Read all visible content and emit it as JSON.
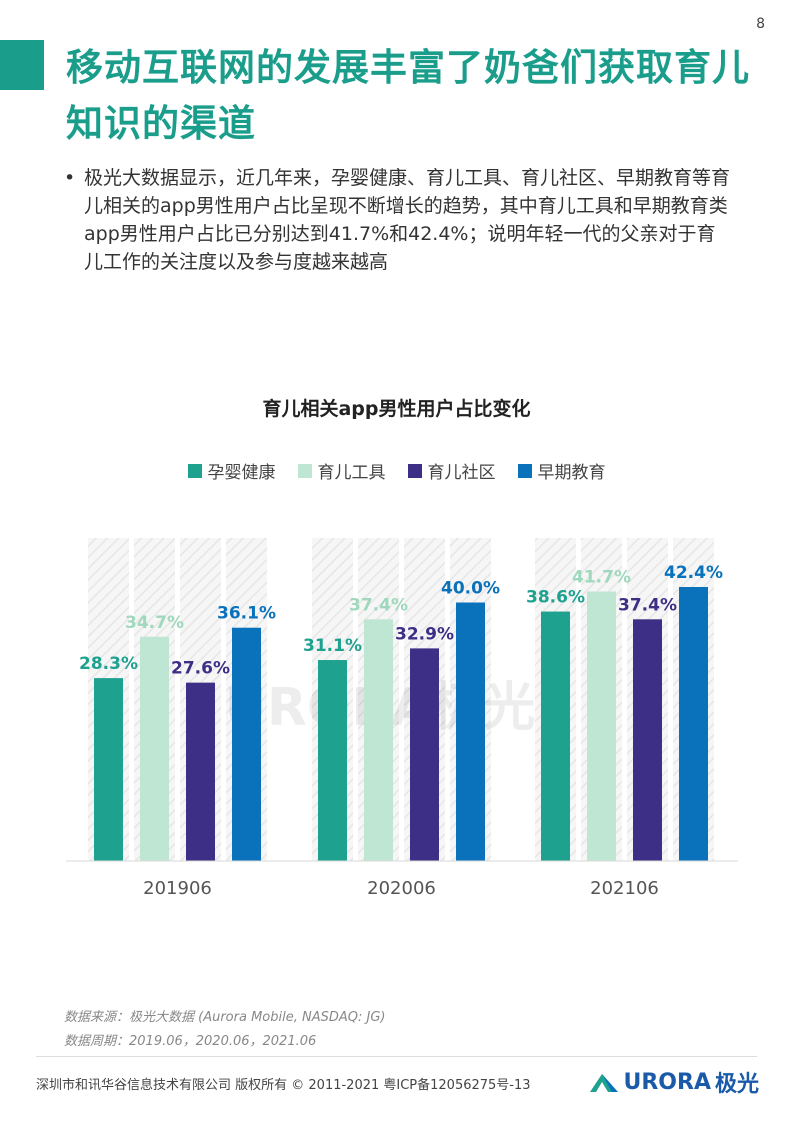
{
  "page_number": "8",
  "title": "移动互联网的发展丰富了奶爸们获取育儿知识的渠道",
  "bullet": "极光大数据显示，近几年来，孕婴健康、育儿工具、育儿社区、早期教育等育儿相关的app男性用户占比呈现不断增长的趋势，其中育儿工具和早期教育类app男性用户占比已分别达到41.7%和42.4%；说明年轻一代的父亲对于育儿工作的关注度以及参与度越来越高",
  "chart_data": {
    "type": "bar",
    "title": "育儿相关app男性用户占比变化",
    "categories": [
      "201906",
      "202006",
      "202106"
    ],
    "series": [
      {
        "name": "孕婴健康",
        "values": [
          28.3,
          31.1,
          38.6
        ],
        "labels": [
          "28.3%",
          "31.1%",
          "38.6%"
        ],
        "color": "#1fa18f",
        "label_color": "#1fa18f"
      },
      {
        "name": "育儿工具",
        "values": [
          34.7,
          37.4,
          41.7
        ],
        "labels": [
          "34.7%",
          "37.4%",
          "41.7%"
        ],
        "color": "#bfe6d2",
        "label_color": "#9fd8bd"
      },
      {
        "name": "育儿社区",
        "values": [
          27.6,
          32.9,
          37.4
        ],
        "labels": [
          "27.6%",
          "32.9%",
          "37.4%"
        ],
        "color": "#3e2f86",
        "label_color": "#3e2f86"
      },
      {
        "name": "早期教育",
        "values": [
          36.1,
          40.0,
          42.4
        ],
        "labels": [
          "36.1%",
          "40.0%",
          "42.4%"
        ],
        "color": "#0a72bb",
        "label_color": "#0a72bb"
      }
    ],
    "legend_position": "top",
    "grid": false,
    "ylim": [
      0,
      50
    ],
    "watermark": "URORA极光"
  },
  "source": {
    "line1": "数据来源：极光大数据 (Aurora Mobile, NASDAQ: JG)",
    "line2": "数据周期：2019.06，2020.06，2021.06"
  },
  "footer": "深圳市和讯华谷信息技术有限公司 版权所有 © 2011-2021 粤ICP备12056275号-13",
  "logo": {
    "text": "URORA",
    "cn": "极光"
  }
}
